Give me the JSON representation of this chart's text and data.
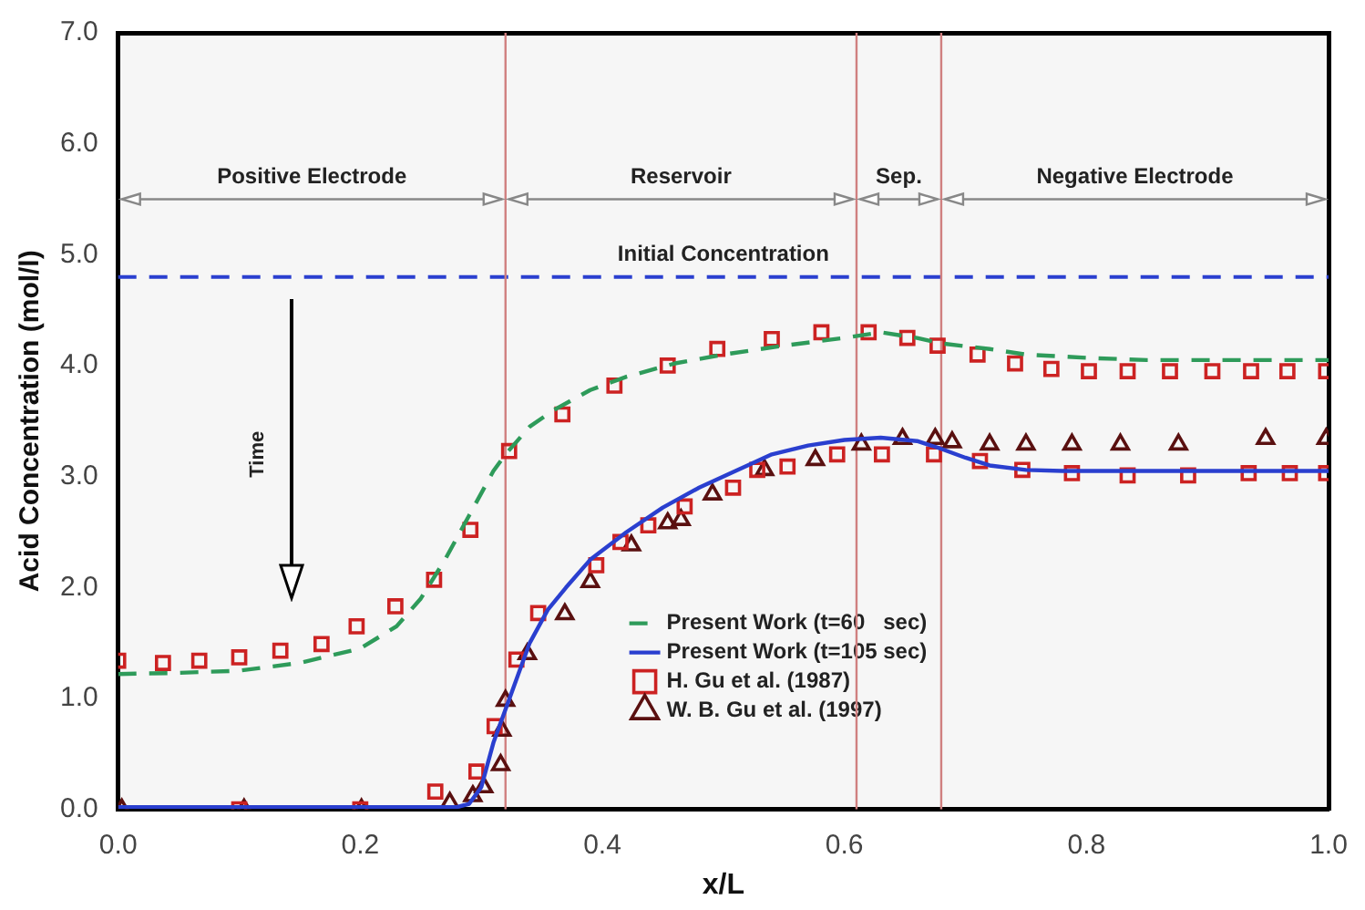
{
  "chart_data": {
    "type": "scatter",
    "xlabel": "x/L",
    "ylabel": "Acid Concentration (mol/l)",
    "xlim": [
      0,
      1
    ],
    "ylim": [
      0,
      7
    ],
    "xticks": [
      {
        "value": 0,
        "label": "0.0"
      },
      {
        "value": 0.2,
        "label": "0.2"
      },
      {
        "value": 0.4,
        "label": "0.4"
      },
      {
        "value": 0.6,
        "label": "0.6"
      },
      {
        "value": 0.8,
        "label": "0.8"
      },
      {
        "value": 1,
        "label": "1.0"
      }
    ],
    "yticks": [
      {
        "value": 0,
        "label": "0.0"
      },
      {
        "value": 1,
        "label": "1.0"
      },
      {
        "value": 2,
        "label": "2.0"
      },
      {
        "value": 3,
        "label": "3.0"
      },
      {
        "value": 4,
        "label": "4.0"
      },
      {
        "value": 5,
        "label": "5.0"
      },
      {
        "value": 6,
        "label": "6.0"
      },
      {
        "value": 7,
        "label": "7.0"
      }
    ],
    "grid": false,
    "legend": "bottom right",
    "series": [
      {
        "name": "Present Work (t=60   sec)",
        "type": "line",
        "marker": "none",
        "line_style": "dashed",
        "color": "#2e9b5a",
        "x": [
          0,
          0.05,
          0.1,
          0.15,
          0.2,
          0.23,
          0.25,
          0.27,
          0.29,
          0.31,
          0.32,
          0.34,
          0.36,
          0.39,
          0.42,
          0.46,
          0.5,
          0.55,
          0.6,
          0.63,
          0.66,
          0.68,
          0.72,
          0.75,
          0.8,
          0.85,
          0.9,
          1.0
        ],
        "values": [
          1.22,
          1.23,
          1.25,
          1.32,
          1.45,
          1.65,
          1.9,
          2.25,
          2.65,
          3.05,
          3.2,
          3.45,
          3.6,
          3.78,
          3.9,
          4.02,
          4.1,
          4.18,
          4.25,
          4.3,
          4.25,
          4.2,
          4.15,
          4.1,
          4.07,
          4.05,
          4.05,
          4.05
        ]
      },
      {
        "name": "Present Work (t=105 sec)",
        "type": "line",
        "marker": "none",
        "line_style": "solid",
        "color": "#2a3fcf",
        "x": [
          0,
          0.1,
          0.2,
          0.28,
          0.29,
          0.3,
          0.305,
          0.31,
          0.32,
          0.33,
          0.34,
          0.355,
          0.37,
          0.39,
          0.42,
          0.45,
          0.48,
          0.51,
          0.54,
          0.57,
          0.6,
          0.63,
          0.66,
          0.68,
          0.7,
          0.72,
          0.75,
          0.78,
          0.85,
          0.9,
          1.0
        ],
        "values": [
          0.02,
          0.02,
          0.02,
          0.02,
          0.05,
          0.2,
          0.4,
          0.6,
          0.9,
          1.2,
          1.5,
          1.8,
          2.0,
          2.25,
          2.5,
          2.72,
          2.9,
          3.05,
          3.2,
          3.28,
          3.33,
          3.35,
          3.32,
          3.25,
          3.17,
          3.1,
          3.06,
          3.05,
          3.05,
          3.05,
          3.05
        ]
      },
      {
        "name": "H. Gu et al. (1987)",
        "type": "scatter",
        "marker": "square",
        "color": "#cc2222",
        "x": [
          0,
          0.037,
          0.067,
          0.1,
          0.134,
          0.168,
          0.197,
          0.229,
          0.261,
          0.291,
          0.323,
          0.367,
          0.41,
          0.454,
          0.495,
          0.54,
          0.581,
          0.62,
          0.652,
          0.677,
          0.71,
          0.741,
          0.771,
          0.802,
          0.834,
          0.869,
          0.904,
          0.936,
          0.966,
          0.998,
          0.1,
          0.2,
          0.262,
          0.296,
          0.311,
          0.329,
          0.347,
          0.395,
          0.415,
          0.438,
          0.468,
          0.508,
          0.528,
          0.553,
          0.594,
          0.631,
          0.674,
          0.712,
          0.747,
          0.788,
          0.834,
          0.884,
          0.934,
          0.968,
          0.998
        ],
        "values": [
          1.34,
          1.32,
          1.34,
          1.37,
          1.43,
          1.49,
          1.65,
          1.83,
          2.07,
          2.52,
          3.23,
          3.56,
          3.82,
          4.0,
          4.15,
          4.24,
          4.3,
          4.3,
          4.25,
          4.18,
          4.1,
          4.02,
          3.97,
          3.95,
          3.95,
          3.95,
          3.95,
          3.95,
          3.95,
          3.95,
          0,
          0,
          0.16,
          0.34,
          0.75,
          1.35,
          1.77,
          2.2,
          2.41,
          2.56,
          2.73,
          2.9,
          3.06,
          3.09,
          3.2,
          3.2,
          3.2,
          3.14,
          3.06,
          3.03,
          3.01,
          3.01,
          3.03,
          3.03,
          3.03
        ]
      },
      {
        "name": "W. B. Gu et al. (1997)",
        "type": "scatter",
        "marker": "triangle",
        "color": "#5a1010",
        "x": [
          0.003,
          0.104,
          0.201,
          0.274,
          0.293,
          0.302,
          0.316,
          0.317,
          0.32,
          0.338,
          0.369,
          0.39,
          0.424,
          0.454,
          0.465,
          0.491,
          0.534,
          0.576,
          0.614,
          0.648,
          0.675,
          0.689,
          0.72,
          0.75,
          0.788,
          0.828,
          0.876,
          0.948,
          0.998
        ],
        "values": [
          0,
          0,
          0,
          0.06,
          0.12,
          0.2,
          0.4,
          0.71,
          0.98,
          1.4,
          1.76,
          2.05,
          2.38,
          2.58,
          2.61,
          2.84,
          3.06,
          3.15,
          3.29,
          3.34,
          3.34,
          3.31,
          3.29,
          3.29,
          3.29,
          3.29,
          3.29,
          3.34,
          3.34
        ]
      }
    ],
    "ref_lines": [
      {
        "axis": "y",
        "value": 4.8,
        "label": "Initial Concentration",
        "color": "#2a3fcf",
        "line_style": "dashed"
      },
      {
        "axis": "x",
        "value": 0.32,
        "color": "#d08080",
        "line_style": "solid"
      },
      {
        "axis": "x",
        "value": 0.61,
        "color": "#d08080",
        "line_style": "solid"
      },
      {
        "axis": "x",
        "value": 0.68,
        "color": "#d08080",
        "line_style": "solid"
      }
    ],
    "bands": [
      {
        "axis": "x",
        "from": 0,
        "to": 0.32,
        "label": "Positive Electrode",
        "color": "#f6f6f6"
      },
      {
        "axis": "x",
        "from": 0.32,
        "to": 0.61,
        "label": "Reservoir",
        "color": "#f6f6f6"
      },
      {
        "axis": "x",
        "from": 0.61,
        "to": 0.68,
        "label": "Sep.",
        "color": "#f6f6f6"
      },
      {
        "axis": "x",
        "from": 0.68,
        "to": 1,
        "label": "Negative Electrode",
        "color": "#f6f6f6"
      }
    ],
    "annotations": [
      "Time"
    ]
  }
}
